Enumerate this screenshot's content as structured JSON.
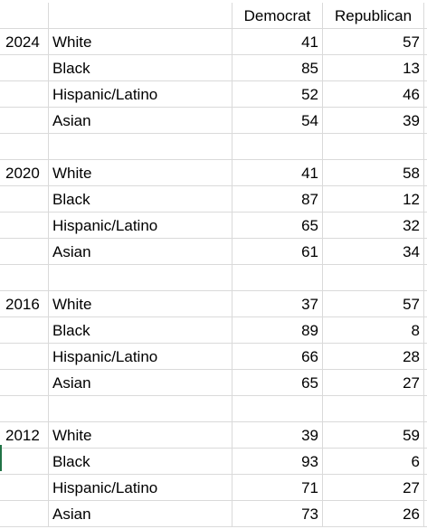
{
  "header": {
    "year": "",
    "group": "",
    "democrat": "Democrat",
    "republican": "Republican"
  },
  "rows": [
    {
      "year": "2024",
      "group": "White",
      "democrat": "41",
      "republican": "57"
    },
    {
      "year": "",
      "group": "Black",
      "democrat": "85",
      "republican": "13"
    },
    {
      "year": "",
      "group": "Hispanic/Latino",
      "democrat": "52",
      "republican": "46"
    },
    {
      "year": "",
      "group": "Asian",
      "democrat": "54",
      "republican": "39"
    },
    {
      "year": "",
      "group": "",
      "democrat": "",
      "republican": ""
    },
    {
      "year": "2020",
      "group": "White",
      "democrat": "41",
      "republican": "58"
    },
    {
      "year": "",
      "group": "Black",
      "democrat": "87",
      "republican": "12"
    },
    {
      "year": "",
      "group": "Hispanic/Latino",
      "democrat": "65",
      "republican": "32"
    },
    {
      "year": "",
      "group": "Asian",
      "democrat": "61",
      "republican": "34"
    },
    {
      "year": "",
      "group": "",
      "democrat": "",
      "republican": ""
    },
    {
      "year": "2016",
      "group": "White",
      "democrat": "37",
      "republican": "57"
    },
    {
      "year": "",
      "group": "Black",
      "democrat": "89",
      "republican": "8"
    },
    {
      "year": "",
      "group": "Hispanic/Latino",
      "democrat": "66",
      "republican": "28"
    },
    {
      "year": "",
      "group": "Asian",
      "democrat": "65",
      "republican": "27"
    },
    {
      "year": "",
      "group": "",
      "democrat": "",
      "republican": ""
    },
    {
      "year": "2012",
      "group": "White",
      "democrat": "39",
      "republican": "59"
    },
    {
      "year": "",
      "group": "Black",
      "democrat": "93",
      "republican": "6"
    },
    {
      "year": "",
      "group": "Hispanic/Latino",
      "democrat": "71",
      "republican": "27"
    },
    {
      "year": "",
      "group": "Asian",
      "democrat": "73",
      "republican": "26"
    }
  ],
  "colors": {
    "gridline": "#dadada",
    "selection_accent": "#217346"
  }
}
